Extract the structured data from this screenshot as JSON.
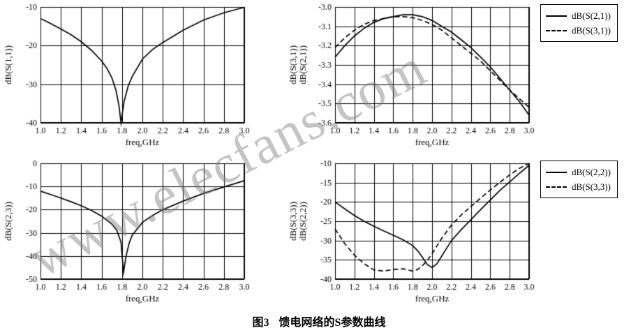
{
  "watermark": "www.elecfans.com",
  "caption": {
    "fig_label": "图3",
    "title": "馈电网络的S参数曲线"
  },
  "chart_data": [
    {
      "id": "s11",
      "type": "line",
      "xlabel": "freq,GHz",
      "ylabels": [
        "dB(S(1,1))"
      ],
      "xlim": [
        1.0,
        3.0
      ],
      "ylim": [
        -40,
        -10
      ],
      "xticks": [
        "1.0",
        "1.2",
        "1.4",
        "1.6",
        "1.8",
        "2.0",
        "2.2",
        "2.4",
        "2.6",
        "2.8",
        "3.0"
      ],
      "yticks": [
        "-10",
        "-20",
        "-30",
        "-40"
      ],
      "grid": true,
      "legend": [],
      "series": [
        {
          "name": "dB(S(1,1))",
          "style": "solid",
          "x": [
            1.0,
            1.1,
            1.2,
            1.3,
            1.4,
            1.5,
            1.6,
            1.65,
            1.7,
            1.74,
            1.77,
            1.79,
            1.82,
            1.86,
            1.9,
            2.0,
            2.1,
            2.2,
            2.4,
            2.6,
            2.8,
            3.0
          ],
          "y": [
            -13,
            -14.3,
            -15.7,
            -17.2,
            -19,
            -21.2,
            -24,
            -25.8,
            -28.3,
            -31.5,
            -35.5,
            -40,
            -34.5,
            -30.5,
            -28,
            -23.5,
            -21,
            -19.2,
            -16,
            -13.4,
            -11.5,
            -10.1
          ]
        }
      ]
    },
    {
      "id": "s21-s31",
      "type": "line",
      "xlabel": "freq,GHz",
      "ylabels": [
        "dB(S(3,1))",
        "dB(S(2,1))"
      ],
      "xlim": [
        1.0,
        3.0
      ],
      "ylim": [
        -3.6,
        -3.0
      ],
      "xticks": [
        "1.0",
        "1.2",
        "1.4",
        "1.6",
        "1.8",
        "2.0",
        "2.2",
        "2.4",
        "2.6",
        "2.8",
        "3.0"
      ],
      "yticks": [
        "-3.0",
        "-3.1",
        "-3.2",
        "-3.3",
        "-3.4",
        "-3.5",
        "-3.6"
      ],
      "grid": true,
      "legend": [
        {
          "label": "dB(S(2,1))",
          "style": "solid"
        },
        {
          "label": "dB(S(3,1))",
          "style": "dashed"
        }
      ],
      "series": [
        {
          "name": "dB(S(2,1))",
          "style": "solid",
          "x": [
            1.0,
            1.1,
            1.2,
            1.3,
            1.4,
            1.5,
            1.6,
            1.7,
            1.8,
            1.9,
            2.0,
            2.1,
            2.2,
            2.3,
            2.4,
            2.5,
            2.6,
            2.7,
            2.8,
            2.9,
            3.0
          ],
          "y": [
            -3.26,
            -3.2,
            -3.15,
            -3.11,
            -3.08,
            -3.06,
            -3.05,
            -3.04,
            -3.04,
            -3.05,
            -3.07,
            -3.1,
            -3.13,
            -3.17,
            -3.21,
            -3.26,
            -3.31,
            -3.37,
            -3.43,
            -3.49,
            -3.56
          ]
        },
        {
          "name": "dB(S(3,1))",
          "style": "dashed",
          "x": [
            1.0,
            1.1,
            1.2,
            1.3,
            1.4,
            1.5,
            1.6,
            1.7,
            1.8,
            1.9,
            2.0,
            2.1,
            2.2,
            2.3,
            2.4,
            2.5,
            2.6,
            2.7,
            2.8,
            2.9,
            3.0
          ],
          "y": [
            -3.21,
            -3.16,
            -3.12,
            -3.09,
            -3.07,
            -3.06,
            -3.05,
            -3.05,
            -3.055,
            -3.07,
            -3.09,
            -3.12,
            -3.16,
            -3.2,
            -3.24,
            -3.28,
            -3.33,
            -3.38,
            -3.43,
            -3.475,
            -3.52
          ]
        }
      ]
    },
    {
      "id": "s23",
      "type": "line",
      "xlabel": "freq,GHz",
      "ylabels": [
        "dB(S(2,3))"
      ],
      "xlim": [
        1.0,
        3.0
      ],
      "ylim": [
        -50,
        0
      ],
      "xticks": [
        "1.0",
        "1.2",
        "1.4",
        "1.6",
        "1.8",
        "2.0",
        "2.2",
        "2.4",
        "2.6",
        "2.8",
        "3.0"
      ],
      "yticks": [
        "0",
        "-10",
        "-20",
        "-30",
        "-40",
        "-50"
      ],
      "grid": true,
      "legend": [],
      "series": [
        {
          "name": "dB(S(2,3))",
          "style": "solid",
          "x": [
            1.0,
            1.1,
            1.2,
            1.3,
            1.4,
            1.5,
            1.6,
            1.7,
            1.75,
            1.79,
            1.815,
            1.84,
            1.87,
            1.9,
            2.0,
            2.1,
            2.2,
            2.4,
            2.6,
            2.8,
            3.0
          ],
          "y": [
            -12,
            -13.5,
            -15,
            -16.6,
            -18.3,
            -20.3,
            -22.8,
            -26.2,
            -29,
            -34,
            -47,
            -40,
            -34.5,
            -31,
            -25.5,
            -22.5,
            -20,
            -16.3,
            -13,
            -10.2,
            -7.5
          ]
        }
      ]
    },
    {
      "id": "s22-s33",
      "type": "line",
      "xlabel": "freq,GHz",
      "ylabels": [
        "dB(S(3,3))",
        "dB(S(2,2))"
      ],
      "xlim": [
        1.0,
        3.0
      ],
      "ylim": [
        -40,
        -10
      ],
      "xticks": [
        "1.0",
        "1.2",
        "1.4",
        "1.6",
        "1.8",
        "2.0",
        "2.2",
        "2.4",
        "2.6",
        "2.8",
        "3.0"
      ],
      "yticks": [
        "-10",
        "-15",
        "-20",
        "-25",
        "-30",
        "-35",
        "-40"
      ],
      "grid": true,
      "legend": [
        {
          "label": "dB(S(2,2))",
          "style": "solid"
        },
        {
          "label": "dB(S(3,3))",
          "style": "dashed"
        }
      ],
      "series": [
        {
          "name": "dB(S(2,2))",
          "style": "solid",
          "x": [
            1.0,
            1.1,
            1.2,
            1.3,
            1.4,
            1.5,
            1.6,
            1.7,
            1.8,
            1.85,
            1.9,
            1.95,
            2.0,
            2.05,
            2.1,
            2.2,
            2.3,
            2.4,
            2.5,
            2.6,
            2.7,
            2.8,
            2.9,
            3.0
          ],
          "y": [
            -20,
            -21.8,
            -23.5,
            -25,
            -26.3,
            -27.5,
            -28.6,
            -29.8,
            -31.3,
            -32.6,
            -34.3,
            -36.2,
            -37,
            -36,
            -34,
            -30,
            -27.2,
            -24.6,
            -22,
            -19.5,
            -17,
            -14.8,
            -12.6,
            -10.5
          ]
        },
        {
          "name": "dB(S(3,3))",
          "style": "dashed",
          "x": [
            1.0,
            1.1,
            1.2,
            1.3,
            1.4,
            1.5,
            1.6,
            1.7,
            1.8,
            1.85,
            1.9,
            1.95,
            2.0,
            2.05,
            2.1,
            2.2,
            2.3,
            2.4,
            2.5,
            2.6,
            2.7,
            2.8,
            2.9,
            3.0
          ],
          "y": [
            -27,
            -30.8,
            -33.8,
            -36,
            -37.6,
            -37.9,
            -37.5,
            -37.3,
            -37.9,
            -37.5,
            -36.5,
            -35.2,
            -33.4,
            -31.4,
            -29.4,
            -26,
            -23.4,
            -21.2,
            -19,
            -16.9,
            -14.9,
            -13,
            -11.3,
            -10
          ]
        }
      ]
    }
  ]
}
